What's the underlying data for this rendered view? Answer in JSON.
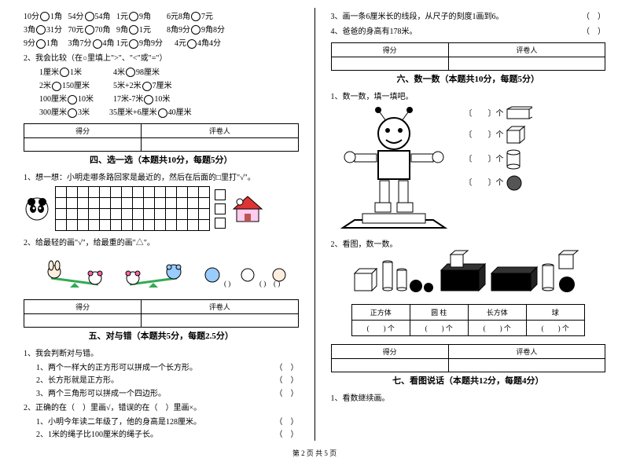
{
  "left": {
    "money_rows": [
      [
        "10分○1角",
        "54分○54角",
        "1元○9角",
        "6元8角○7元"
      ],
      [
        "3角○31分",
        "70元○70角",
        "9角○1元",
        "8角9分○9角8分"
      ],
      [
        "9分○1角",
        "3角7分○4角",
        "1元○9角9分",
        "4元○4角4分"
      ]
    ],
    "compare_title": "2、我会比较（在○里填上\">\"、\"<\"或\"=\"）",
    "compare_rows": [
      [
        "1厘米○1米",
        "4米○98厘米"
      ],
      [
        "2米○150厘米",
        "5米+2米○7厘米"
      ],
      [
        "100厘米○10米",
        "17米-7米○10米"
      ],
      [
        "300厘米○3米",
        "35厘米+6厘米○40厘米"
      ]
    ],
    "score_labels": {
      "a": "得分",
      "b": "评卷人"
    },
    "sec4_title": "四、选一选（本题共10分，每题5分）",
    "sec4_q1": "1、想一想：小明走哪条路回家是最近的，然后在后面的□里打\"√\"。",
    "sec4_q2": "2、给最轻的画\"√\"，给最重的画\"△\"。",
    "sec5_title": "五、对与错（本题共5分，每题2.5分）",
    "sec5_q1": "1、我会判断对与错。",
    "sec5_q1_items": [
      "1、两个一样大的正方形可以拼成一个长方形。",
      "2、长方形就是正方形。",
      "3、两个三角形可以拼成一个四边形。"
    ],
    "sec5_q2": "2、正确的在（　）里画√，错误的在（　）里画×。",
    "sec5_q2_items": [
      "1、小明今年读二年级了，他的身高是128厘米。",
      "2、1米的绳子比100厘米的绳子长。"
    ]
  },
  "right": {
    "top_items": [
      "3、画一条6厘米长的线段，从尺子的刻度1画到6。",
      "4、爸爸的身高有178米。"
    ],
    "score_labels": {
      "a": "得分",
      "b": "评卷人"
    },
    "sec6_title": "六、数一数（本题共10分，每题5分）",
    "sec6_q1": "1、数一数，填一填吧。",
    "shape_labels": [
      "〔　　〕个",
      "〔　　〕个",
      "〔　　〕个",
      "〔　　〕个"
    ],
    "sec6_q2": "2、看图，数一数。",
    "shape_table_head": [
      "正方体",
      "圆 柱",
      "长方体",
      "球"
    ],
    "shape_table_row": [
      "(　　) 个",
      "(　　) 个",
      "(　　) 个",
      "(　　) 个"
    ],
    "sec7_title": "七、看图说话（本题共12分，每题4分）",
    "sec7_q1": "1、看数继续画。"
  },
  "footer": "第 2 页 共 5 页"
}
